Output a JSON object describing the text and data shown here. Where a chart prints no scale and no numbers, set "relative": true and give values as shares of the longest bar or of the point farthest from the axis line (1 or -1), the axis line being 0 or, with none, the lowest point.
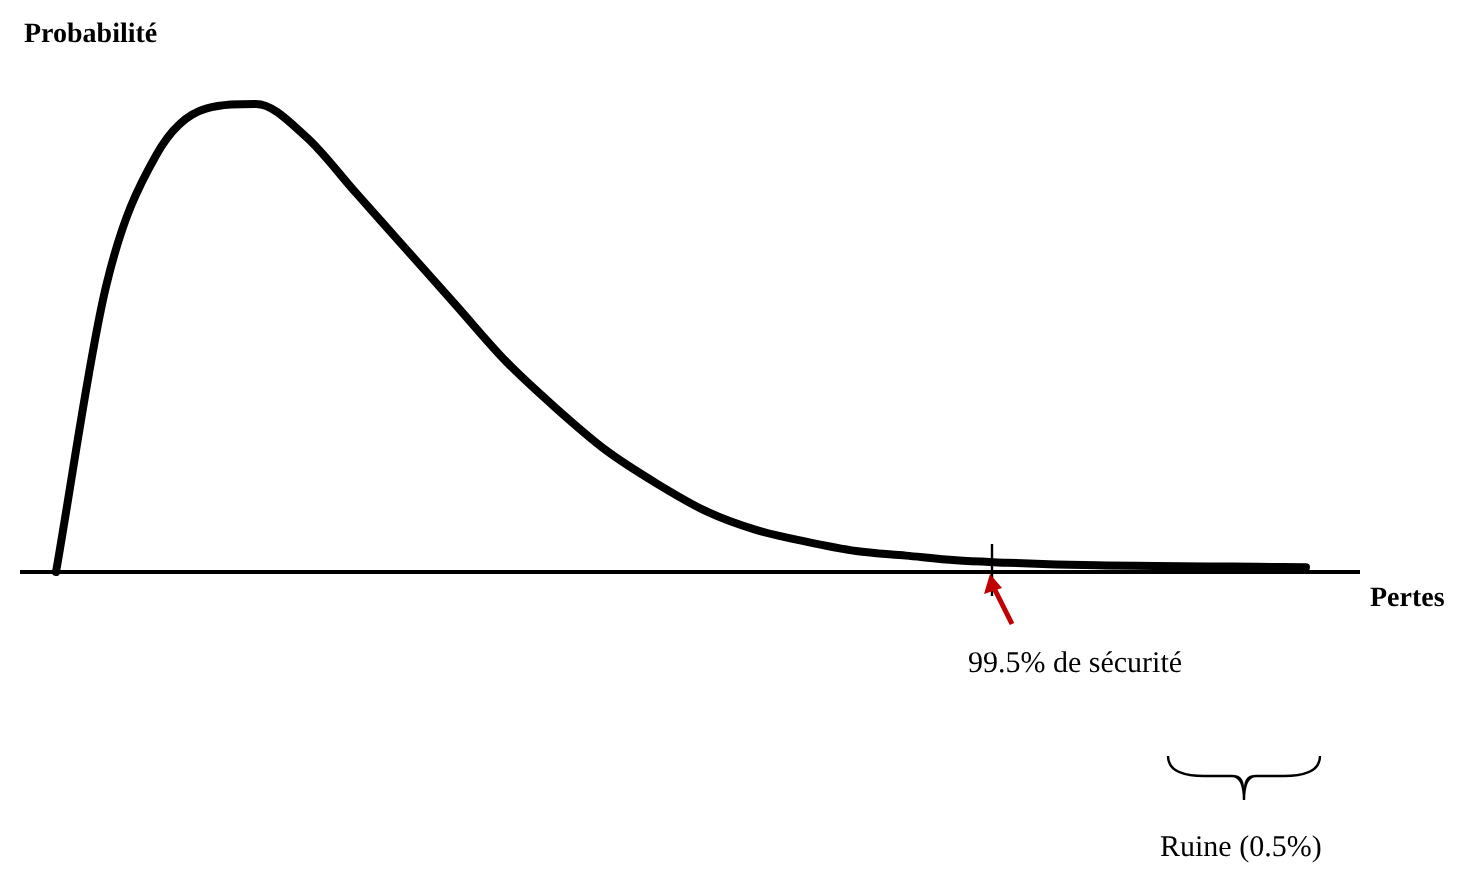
{
  "chart_data": {
    "type": "line",
    "relative": true,
    "xlabel": "Pertes",
    "ylabel": "Probabilité",
    "marker": "none",
    "line_style": "solid",
    "legend": false,
    "categories": [
      null,
      null,
      null,
      null,
      null,
      null,
      null,
      null,
      null,
      null,
      null,
      null,
      null,
      null,
      null,
      null,
      null,
      null,
      null,
      null,
      null,
      null,
      null,
      null,
      null,
      null
    ],
    "series": [
      {
        "color": "#000000",
        "values": [
          0,
          0.61,
          0.89,
          0.99,
          1,
          0.93,
          0.81,
          0.69,
          0.57,
          0.45,
          0.35,
          0.26,
          0.19,
          0.13,
          0.09,
          0.065,
          0.045,
          0.035,
          0.025,
          0.02,
          0.016,
          0.014,
          0.013,
          0.012,
          0.011,
          0.01
        ]
      }
    ],
    "annotations": [
      "99.5% de sécurité",
      "Ruine (0.5%)"
    ]
  }
}
